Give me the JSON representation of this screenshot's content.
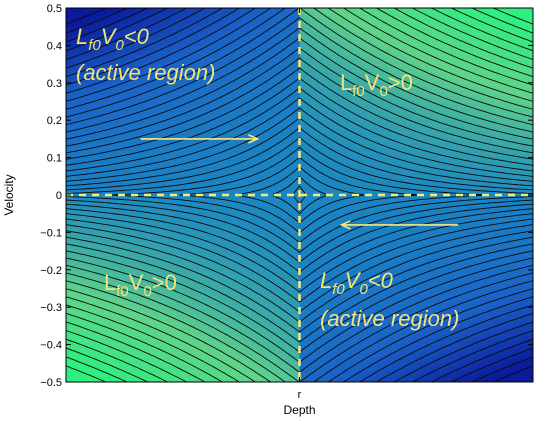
{
  "chart_data": {
    "type": "heatmap",
    "title": "",
    "xlabel": "Depth",
    "ylabel": "Velocity",
    "x_ticks": [
      {
        "label": "r",
        "value": 0
      }
    ],
    "xlim": [
      -1,
      1
    ],
    "ylim": [
      -0.5,
      0.5
    ],
    "y_ticks": [
      {
        "label": "0.5",
        "value": 0.5
      },
      {
        "label": "0.4",
        "value": 0.4
      },
      {
        "label": "0.3",
        "value": 0.3
      },
      {
        "label": "0.2",
        "value": 0.2
      },
      {
        "label": "0.1",
        "value": 0.1
      },
      {
        "label": "0",
        "value": 0
      },
      {
        "label": "−0.1",
        "value": -0.1
      },
      {
        "label": "−0.2",
        "value": -0.2
      },
      {
        "label": "−0.3",
        "value": -0.3
      },
      {
        "label": "−0.4",
        "value": -0.4
      },
      {
        "label": "−0.5",
        "value": -0.5
      }
    ],
    "grid": false,
    "contour_lines": true,
    "colormap": [
      "#0b1a9c",
      "#1a62c8",
      "#1a86c4",
      "#5fd48a",
      "#2ef07f"
    ],
    "reference_lines": {
      "horizontal_y": 0,
      "vertical_x": 0,
      "style": "dashed",
      "color": "#f7ec7a"
    },
    "annotations": [
      {
        "id": "top-left",
        "lines": [
          [
            "L",
            "f0",
            "V",
            "0",
            "<0"
          ],
          "(active region)"
        ],
        "italic": true
      },
      {
        "id": "top-right",
        "lines": [
          [
            "L",
            "f0",
            "V",
            "0",
            ">0"
          ]
        ],
        "italic": false
      },
      {
        "id": "bottom-left",
        "lines": [
          [
            "L",
            "f0",
            "V",
            "0",
            ">0"
          ]
        ],
        "italic": false
      },
      {
        "id": "bottom-right",
        "lines": [
          [
            "L",
            "f0",
            "V",
            "0",
            "<0"
          ],
          "(active region)"
        ],
        "italic": true
      }
    ],
    "arrows": [
      {
        "from": [
          -0.68,
          0.15
        ],
        "to": [
          -0.18,
          0.15
        ],
        "direction": "right"
      },
      {
        "from": [
          0.68,
          -0.08
        ],
        "to": [
          0.18,
          -0.08
        ],
        "direction": "left"
      }
    ]
  }
}
